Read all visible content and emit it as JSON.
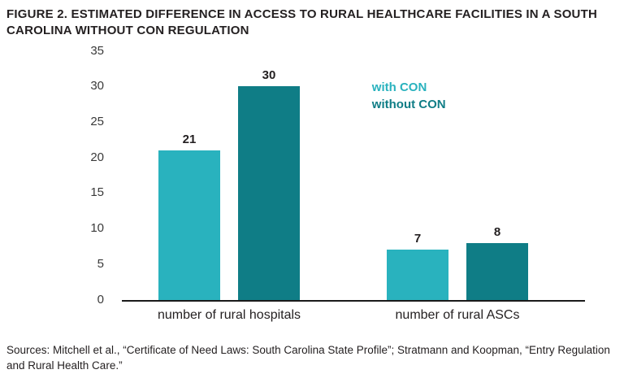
{
  "title": "FIGURE 2. ESTIMATED DIFFERENCE IN ACCESS TO RURAL HEALTHCARE FACILITIES IN A SOUTH CAROLINA WITHOUT CON REGULATION",
  "source": "Sources: Mitchell et al., “Certificate of Need Laws: South Carolina State Profile”; Stratmann and Koopman, “Entry Regulation and Rural Health Care.”",
  "colors": {
    "with_con": "#29b2be",
    "without_con": "#0f7d86",
    "axis_line": "#1a1a1a",
    "text": "#231f20"
  },
  "chart_data": {
    "type": "bar",
    "title": "FIGURE 2. ESTIMATED DIFFERENCE IN ACCESS TO RURAL HEALTHCARE FACILITIES IN A SOUTH CAROLINA WITHOUT CON REGULATION",
    "categories": [
      "number of rural hospitals",
      "number of rural ASCs"
    ],
    "series": [
      {
        "name": "with CON",
        "values": [
          21,
          7
        ],
        "color": "#29b2be"
      },
      {
        "name": "without CON",
        "values": [
          30,
          8
        ],
        "color": "#0f7d86"
      }
    ],
    "xlabel": "",
    "ylabel": "",
    "ylim": [
      0,
      35
    ],
    "yticks": [
      0,
      5,
      10,
      15,
      20,
      25,
      30,
      35
    ],
    "grid": false,
    "legend_position": "inside-top-right"
  }
}
